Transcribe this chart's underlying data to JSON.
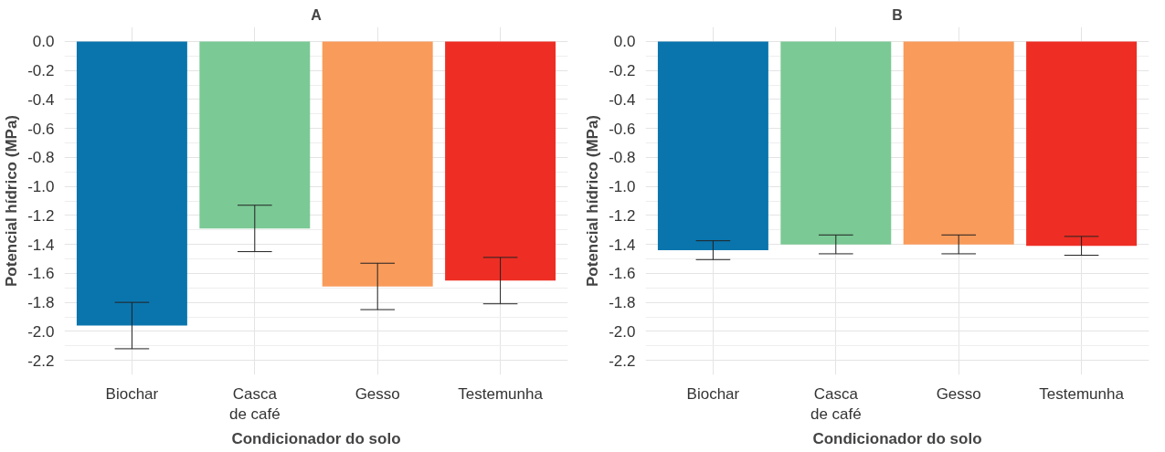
{
  "chart_data": [
    {
      "type": "bar",
      "title": "A",
      "xlabel": "Condicionador do solo",
      "ylabel": "Potencial hídrico (MPa)",
      "categories": [
        "Biochar",
        "Casca\nde café",
        "Gesso",
        "Testemunha"
      ],
      "values": [
        -1.96,
        -1.29,
        -1.69,
        -1.65
      ],
      "errors": [
        0.16,
        0.16,
        0.16,
        0.16
      ],
      "colors": [
        "#0a75ad",
        "#7bc995",
        "#f99b5b",
        "#ee2e24"
      ],
      "ylim": [
        -2.3,
        0.1
      ],
      "yticks": [
        {
          "value": 0,
          "label": "0.0"
        },
        {
          "value": -0.2,
          "label": "-0.2"
        },
        {
          "value": -0.4,
          "label": "-0.4"
        },
        {
          "value": -0.6,
          "label": "-0.6"
        },
        {
          "value": -0.8,
          "label": "-0.8"
        },
        {
          "value": -1.0,
          "label": "-1.0"
        },
        {
          "value": -1.2,
          "label": "-1.2"
        },
        {
          "value": -1.4,
          "label": "-1.4"
        },
        {
          "value": -1.6,
          "label": "-1.6"
        },
        {
          "value": -1.8,
          "label": "-1.8"
        },
        {
          "value": -2.0,
          "label": "-2.0"
        },
        {
          "value": -2.2,
          "label": "-2.2"
        }
      ],
      "grid": true
    },
    {
      "type": "bar",
      "title": "B",
      "xlabel": "Condicionador do solo",
      "ylabel": "Potencial hídrico (MPa)",
      "categories": [
        "Biochar",
        "Casca\nde café",
        "Gesso",
        "Testemunha"
      ],
      "values": [
        -1.44,
        -1.4,
        -1.4,
        -1.41
      ],
      "errors": [
        0.065,
        0.065,
        0.065,
        0.065
      ],
      "colors": [
        "#0a75ad",
        "#7bc995",
        "#f99b5b",
        "#ee2e24"
      ],
      "ylim": [
        -2.3,
        0.1
      ],
      "yticks": [
        {
          "value": 0,
          "label": "0.0"
        },
        {
          "value": -0.2,
          "label": "-0.2"
        },
        {
          "value": -0.4,
          "label": "-0.4"
        },
        {
          "value": -0.6,
          "label": "-0.6"
        },
        {
          "value": -0.8,
          "label": "-0.8"
        },
        {
          "value": -1.0,
          "label": "-1.0"
        },
        {
          "value": -1.2,
          "label": "-1.2"
        },
        {
          "value": -1.4,
          "label": "-1.4"
        },
        {
          "value": -1.6,
          "label": "-1.6"
        },
        {
          "value": -1.8,
          "label": "-1.8"
        },
        {
          "value": -2.0,
          "label": "-2.0"
        },
        {
          "value": -2.2,
          "label": "-2.2"
        }
      ],
      "grid": true
    }
  ]
}
